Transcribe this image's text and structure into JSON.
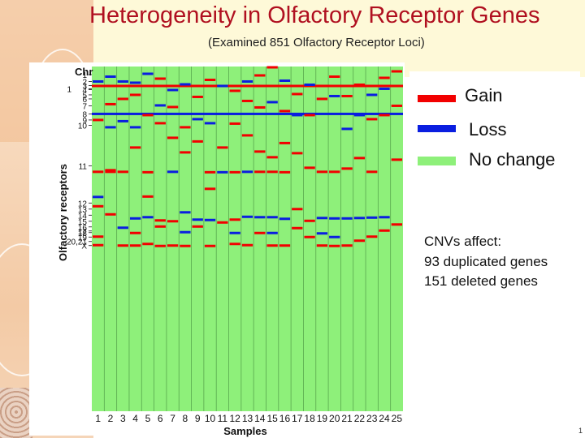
{
  "slide": {
    "title": "Heterogeneity in Olfactory Receptor Genes",
    "subtitle": "(Examined 851 Olfactory Receptor Loci)",
    "notes": [
      "CNVs affect:",
      "93 duplicated genes",
      "151 deleted genes"
    ],
    "page_number": "1"
  },
  "legend": [
    {
      "label": "Gain",
      "color": "#f20000"
    },
    {
      "label": "Loss",
      "color": "#0a1ee0"
    },
    {
      "label": "No change",
      "color": "#8ef07a"
    }
  ],
  "chart_data": {
    "type": "heatmap",
    "title": "",
    "xlabel": "Samples",
    "ylabel": "Olfactory receptors",
    "y_axis_header": "Chr",
    "states": {
      "gain": "#f20000",
      "loss": "#0a1ee0",
      "none": "#8ef07a"
    },
    "samples": [
      "1",
      "2",
      "3",
      "4",
      "5",
      "6",
      "7",
      "8",
      "9",
      "10",
      "11",
      "12",
      "13",
      "14",
      "15",
      "16",
      "17",
      "18",
      "19",
      "20",
      "21",
      "22",
      "23",
      "24",
      "25"
    ],
    "total_loci": 851,
    "chromosome_ticks": [
      {
        "label": "1",
        "locus": 20
      },
      {
        "label": "2",
        "locus": 37
      },
      {
        "label": "1",
        "locus": 55
      },
      {
        "label": "3",
        "locus": 47
      },
      {
        "label": "4",
        "locus": 57
      },
      {
        "label": "5",
        "locus": 70
      },
      {
        "label": "6",
        "locus": 80
      },
      {
        "label": "7",
        "locus": 97
      },
      {
        "label": "8",
        "locus": 117
      },
      {
        "label": "9",
        "locus": 132
      },
      {
        "label": "10",
        "locus": 145
      },
      {
        "label": "11",
        "locus": 245
      },
      {
        "label": "12",
        "locus": 337
      },
      {
        "label": "13",
        "locus": 352
      },
      {
        "label": "14",
        "locus": 367
      },
      {
        "label": "15",
        "locus": 382
      },
      {
        "label": "16",
        "locus": 396
      },
      {
        "label": "17",
        "locus": 406
      },
      {
        "label": "18",
        "locus": 410
      },
      {
        "label": "19",
        "locus": 421
      },
      {
        "label": "20,21",
        "locus": 432
      },
      {
        "label": "X",
        "locus": 442
      }
    ],
    "full_row_events": [
      {
        "locus": 48,
        "state": "gain"
      },
      {
        "locus": 117,
        "state": "loss"
      }
    ],
    "events": [
      {
        "sample": 1,
        "locus": 37,
        "state": "loss"
      },
      {
        "sample": 1,
        "locus": 132,
        "state": "gain"
      },
      {
        "sample": 1,
        "locus": 260,
        "state": "gain"
      },
      {
        "sample": 1,
        "locus": 322,
        "state": "loss"
      },
      {
        "sample": 1,
        "locus": 345,
        "state": "gain"
      },
      {
        "sample": 1,
        "locus": 420,
        "state": "gain"
      },
      {
        "sample": 1,
        "locus": 441,
        "state": "gain"
      },
      {
        "sample": 2,
        "locus": 25,
        "state": "loss"
      },
      {
        "sample": 2,
        "locus": 93,
        "state": "gain"
      },
      {
        "sample": 2,
        "locus": 150,
        "state": "loss"
      },
      {
        "sample": 2,
        "locus": 256,
        "state": "gain"
      },
      {
        "sample": 2,
        "locus": 260,
        "state": "gain"
      },
      {
        "sample": 2,
        "locus": 365,
        "state": "gain"
      },
      {
        "sample": 3,
        "locus": 37,
        "state": "loss"
      },
      {
        "sample": 3,
        "locus": 80,
        "state": "gain"
      },
      {
        "sample": 3,
        "locus": 135,
        "state": "loss"
      },
      {
        "sample": 3,
        "locus": 260,
        "state": "gain"
      },
      {
        "sample": 3,
        "locus": 398,
        "state": "loss"
      },
      {
        "sample": 3,
        "locus": 442,
        "state": "gain"
      },
      {
        "sample": 4,
        "locus": 40,
        "state": "loss"
      },
      {
        "sample": 4,
        "locus": 70,
        "state": "gain"
      },
      {
        "sample": 4,
        "locus": 150,
        "state": "loss"
      },
      {
        "sample": 4,
        "locus": 200,
        "state": "gain"
      },
      {
        "sample": 4,
        "locus": 375,
        "state": "loss"
      },
      {
        "sample": 4,
        "locus": 411,
        "state": "gain"
      },
      {
        "sample": 4,
        "locus": 442,
        "state": "gain"
      },
      {
        "sample": 5,
        "locus": 18,
        "state": "loss"
      },
      {
        "sample": 5,
        "locus": 120,
        "state": "gain"
      },
      {
        "sample": 5,
        "locus": 261,
        "state": "gain"
      },
      {
        "sample": 5,
        "locus": 321,
        "state": "gain"
      },
      {
        "sample": 5,
        "locus": 372,
        "state": "loss"
      },
      {
        "sample": 5,
        "locus": 438,
        "state": "gain"
      },
      {
        "sample": 6,
        "locus": 30,
        "state": "gain"
      },
      {
        "sample": 6,
        "locus": 96,
        "state": "loss"
      },
      {
        "sample": 6,
        "locus": 140,
        "state": "gain"
      },
      {
        "sample": 6,
        "locus": 380,
        "state": "gain"
      },
      {
        "sample": 6,
        "locus": 395,
        "state": "gain"
      },
      {
        "sample": 6,
        "locus": 443,
        "state": "gain"
      },
      {
        "sample": 7,
        "locus": 58,
        "state": "loss"
      },
      {
        "sample": 7,
        "locus": 100,
        "state": "gain"
      },
      {
        "sample": 7,
        "locus": 176,
        "state": "gain"
      },
      {
        "sample": 7,
        "locus": 260,
        "state": "loss"
      },
      {
        "sample": 7,
        "locus": 382,
        "state": "gain"
      },
      {
        "sample": 7,
        "locus": 442,
        "state": "gain"
      },
      {
        "sample": 8,
        "locus": 44,
        "state": "loss"
      },
      {
        "sample": 8,
        "locus": 150,
        "state": "gain"
      },
      {
        "sample": 8,
        "locus": 212,
        "state": "gain"
      },
      {
        "sample": 8,
        "locus": 360,
        "state": "loss"
      },
      {
        "sample": 8,
        "locus": 409,
        "state": "loss"
      },
      {
        "sample": 8,
        "locus": 443,
        "state": "gain"
      },
      {
        "sample": 9,
        "locus": 75,
        "state": "gain"
      },
      {
        "sample": 9,
        "locus": 130,
        "state": "loss"
      },
      {
        "sample": 9,
        "locus": 185,
        "state": "gain"
      },
      {
        "sample": 9,
        "locus": 378,
        "state": "loss"
      },
      {
        "sample": 9,
        "locus": 395,
        "state": "gain"
      },
      {
        "sample": 10,
        "locus": 33,
        "state": "gain"
      },
      {
        "sample": 10,
        "locus": 140,
        "state": "loss"
      },
      {
        "sample": 10,
        "locus": 261,
        "state": "gain"
      },
      {
        "sample": 10,
        "locus": 302,
        "state": "gain"
      },
      {
        "sample": 10,
        "locus": 379,
        "state": "loss"
      },
      {
        "sample": 10,
        "locus": 443,
        "state": "gain"
      },
      {
        "sample": 11,
        "locus": 48,
        "state": "loss"
      },
      {
        "sample": 11,
        "locus": 200,
        "state": "gain"
      },
      {
        "sample": 11,
        "locus": 261,
        "state": "loss"
      },
      {
        "sample": 11,
        "locus": 385,
        "state": "gain"
      },
      {
        "sample": 12,
        "locus": 60,
        "state": "gain"
      },
      {
        "sample": 12,
        "locus": 141,
        "state": "gain"
      },
      {
        "sample": 12,
        "locus": 261,
        "state": "gain"
      },
      {
        "sample": 12,
        "locus": 378,
        "state": "gain"
      },
      {
        "sample": 12,
        "locus": 411,
        "state": "loss"
      },
      {
        "sample": 12,
        "locus": 438,
        "state": "gain"
      },
      {
        "sample": 13,
        "locus": 37,
        "state": "loss"
      },
      {
        "sample": 13,
        "locus": 85,
        "state": "gain"
      },
      {
        "sample": 13,
        "locus": 170,
        "state": "gain"
      },
      {
        "sample": 13,
        "locus": 260,
        "state": "loss"
      },
      {
        "sample": 13,
        "locus": 371,
        "state": "loss"
      },
      {
        "sample": 13,
        "locus": 441,
        "state": "gain"
      },
      {
        "sample": 14,
        "locus": 22,
        "state": "gain"
      },
      {
        "sample": 14,
        "locus": 101,
        "state": "gain"
      },
      {
        "sample": 14,
        "locus": 210,
        "state": "gain"
      },
      {
        "sample": 14,
        "locus": 260,
        "state": "gain"
      },
      {
        "sample": 14,
        "locus": 372,
        "state": "loss"
      },
      {
        "sample": 14,
        "locus": 411,
        "state": "gain"
      },
      {
        "sample": 15,
        "locus": 2,
        "state": "gain"
      },
      {
        "sample": 15,
        "locus": 88,
        "state": "loss"
      },
      {
        "sample": 15,
        "locus": 224,
        "state": "gain"
      },
      {
        "sample": 15,
        "locus": 260,
        "state": "gain"
      },
      {
        "sample": 15,
        "locus": 372,
        "state": "loss"
      },
      {
        "sample": 15,
        "locus": 411,
        "state": "loss"
      },
      {
        "sample": 15,
        "locus": 442,
        "state": "gain"
      },
      {
        "sample": 16,
        "locus": 35,
        "state": "loss"
      },
      {
        "sample": 16,
        "locus": 110,
        "state": "gain"
      },
      {
        "sample": 16,
        "locus": 189,
        "state": "gain"
      },
      {
        "sample": 16,
        "locus": 261,
        "state": "gain"
      },
      {
        "sample": 16,
        "locus": 376,
        "state": "loss"
      },
      {
        "sample": 16,
        "locus": 442,
        "state": "gain"
      },
      {
        "sample": 17,
        "locus": 68,
        "state": "gain"
      },
      {
        "sample": 17,
        "locus": 120,
        "state": "loss"
      },
      {
        "sample": 17,
        "locus": 214,
        "state": "gain"
      },
      {
        "sample": 17,
        "locus": 352,
        "state": "gain"
      },
      {
        "sample": 17,
        "locus": 399,
        "state": "gain"
      },
      {
        "sample": 18,
        "locus": 45,
        "state": "loss"
      },
      {
        "sample": 18,
        "locus": 120,
        "state": "gain"
      },
      {
        "sample": 18,
        "locus": 250,
        "state": "gain"
      },
      {
        "sample": 18,
        "locus": 381,
        "state": "gain"
      },
      {
        "sample": 18,
        "locus": 421,
        "state": "gain"
      },
      {
        "sample": 19,
        "locus": 48,
        "state": "gain"
      },
      {
        "sample": 19,
        "locus": 80,
        "state": "gain"
      },
      {
        "sample": 19,
        "locus": 260,
        "state": "gain"
      },
      {
        "sample": 19,
        "locus": 374,
        "state": "loss"
      },
      {
        "sample": 19,
        "locus": 412,
        "state": "loss"
      },
      {
        "sample": 19,
        "locus": 442,
        "state": "gain"
      },
      {
        "sample": 20,
        "locus": 25,
        "state": "gain"
      },
      {
        "sample": 20,
        "locus": 73,
        "state": "loss"
      },
      {
        "sample": 20,
        "locus": 260,
        "state": "gain"
      },
      {
        "sample": 20,
        "locus": 375,
        "state": "loss"
      },
      {
        "sample": 20,
        "locus": 421,
        "state": "loss"
      },
      {
        "sample": 20,
        "locus": 443,
        "state": "gain"
      },
      {
        "sample": 21,
        "locus": 73,
        "state": "gain"
      },
      {
        "sample": 21,
        "locus": 154,
        "state": "loss"
      },
      {
        "sample": 21,
        "locus": 252,
        "state": "gain"
      },
      {
        "sample": 21,
        "locus": 375,
        "state": "loss"
      },
      {
        "sample": 21,
        "locus": 442,
        "state": "gain"
      },
      {
        "sample": 22,
        "locus": 45,
        "state": "gain"
      },
      {
        "sample": 22,
        "locus": 120,
        "state": "loss"
      },
      {
        "sample": 22,
        "locus": 226,
        "state": "gain"
      },
      {
        "sample": 22,
        "locus": 374,
        "state": "loss"
      },
      {
        "sample": 22,
        "locus": 430,
        "state": "gain"
      },
      {
        "sample": 23,
        "locus": 70,
        "state": "loss"
      },
      {
        "sample": 23,
        "locus": 130,
        "state": "gain"
      },
      {
        "sample": 23,
        "locus": 260,
        "state": "gain"
      },
      {
        "sample": 23,
        "locus": 373,
        "state": "loss"
      },
      {
        "sample": 23,
        "locus": 420,
        "state": "gain"
      },
      {
        "sample": 24,
        "locus": 28,
        "state": "gain"
      },
      {
        "sample": 24,
        "locus": 55,
        "state": "loss"
      },
      {
        "sample": 24,
        "locus": 120,
        "state": "gain"
      },
      {
        "sample": 24,
        "locus": 372,
        "state": "loss"
      },
      {
        "sample": 24,
        "locus": 405,
        "state": "gain"
      },
      {
        "sample": 25,
        "locus": 12,
        "state": "gain"
      },
      {
        "sample": 25,
        "locus": 97,
        "state": "gain"
      },
      {
        "sample": 25,
        "locus": 230,
        "state": "gain"
      },
      {
        "sample": 25,
        "locus": 390,
        "state": "gain"
      }
    ]
  }
}
